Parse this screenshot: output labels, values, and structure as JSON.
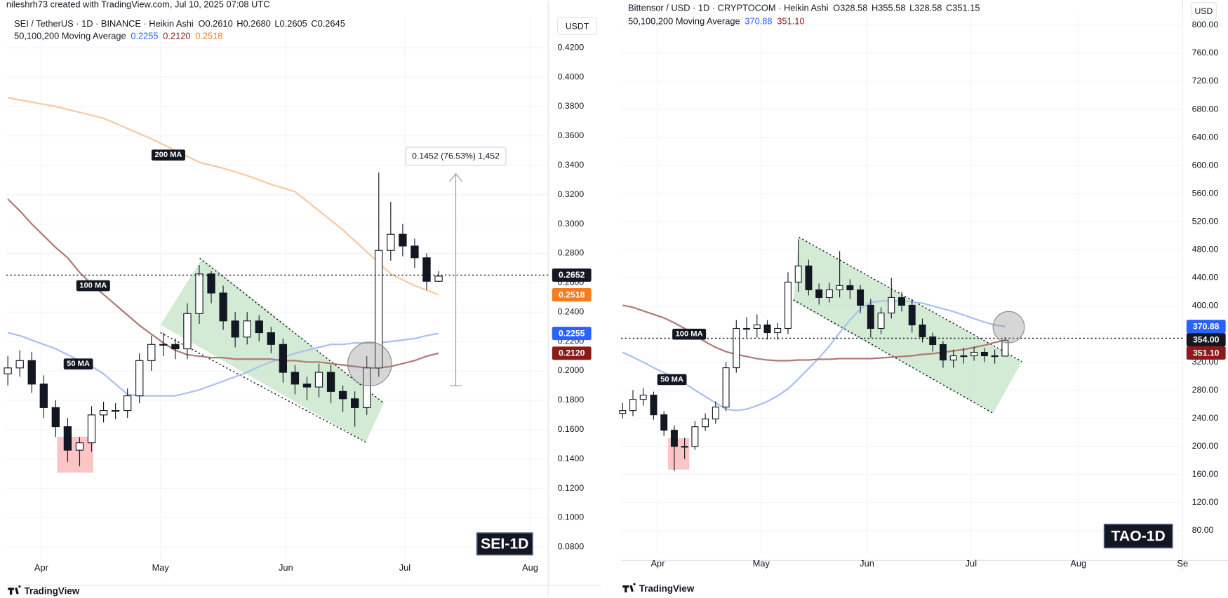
{
  "credit": "nileshrh73 created with TradingView.com, Jul 10, 2025 07:08 UTC",
  "chart_data": [
    {
      "type": "candlestick",
      "title": "SEI / TetherUS · 1D · BINANCE · Heikin Ashi",
      "ohlc_legend": [
        "O0.2610",
        "H0.2680",
        "L0.2605",
        "C0.2645"
      ],
      "ma_title": "50,100,200 Moving Average",
      "currency": "USDT",
      "watermark": "SEI-1D",
      "brand": "TradingView",
      "measure_label": "0.1452 (76.53%) 1,452",
      "up_color": "#ffffff",
      "down_color": "#131722",
      "grid": true,
      "candles": {
        "open": [
          0.198,
          0.202,
          0.207,
          0.191,
          0.175,
          0.162,
          0.146,
          0.151,
          0.17,
          0.173,
          0.173,
          0.183,
          0.207,
          0.218,
          0.218,
          0.215,
          0.239,
          0.266,
          0.253,
          0.234,
          0.223,
          0.234,
          0.226,
          0.218,
          0.199,
          0.191,
          0.189,
          0.199,
          0.186,
          0.181,
          0.175,
          0.202,
          0.282,
          0.293,
          0.285,
          0.277,
          0.261
        ],
        "high": [
          0.21,
          0.214,
          0.213,
          0.197,
          0.18,
          0.168,
          0.155,
          0.176,
          0.179,
          0.178,
          0.188,
          0.212,
          0.224,
          0.226,
          0.222,
          0.246,
          0.272,
          0.268,
          0.258,
          0.24,
          0.24,
          0.238,
          0.23,
          0.222,
          0.204,
          0.196,
          0.205,
          0.204,
          0.19,
          0.186,
          0.21,
          0.335,
          0.315,
          0.3,
          0.29,
          0.28,
          0.268
        ],
        "low": [
          0.19,
          0.196,
          0.185,
          0.168,
          0.155,
          0.138,
          0.135,
          0.145,
          0.165,
          0.167,
          0.168,
          0.178,
          0.2,
          0.21,
          0.208,
          0.208,
          0.232,
          0.246,
          0.228,
          0.216,
          0.218,
          0.22,
          0.212,
          0.192,
          0.184,
          0.18,
          0.182,
          0.178,
          0.172,
          0.162,
          0.17,
          0.196,
          0.275,
          0.278,
          0.27,
          0.255,
          0.2605
        ],
        "close": [
          0.202,
          0.207,
          0.191,
          0.175,
          0.162,
          0.146,
          0.151,
          0.17,
          0.173,
          0.173,
          0.183,
          0.207,
          0.218,
          0.218,
          0.215,
          0.239,
          0.266,
          0.253,
          0.234,
          0.223,
          0.234,
          0.226,
          0.218,
          0.199,
          0.191,
          0.189,
          0.199,
          0.186,
          0.181,
          0.175,
          0.202,
          0.282,
          0.293,
          0.285,
          0.277,
          0.261,
          0.2645
        ]
      },
      "series": [
        {
          "name": "50 MA",
          "color": "#a9c0f2",
          "label_color": "#2962ff",
          "last_label": "0.2255",
          "values": [
            0.226,
            0.224,
            0.221,
            0.218,
            0.215,
            0.211,
            0.207,
            0.203,
            0.198,
            0.191,
            0.184,
            0.183,
            0.183,
            0.183,
            0.183,
            0.185,
            0.187,
            0.19,
            0.193,
            0.196,
            0.199,
            0.203,
            0.206,
            0.209,
            0.212,
            0.214,
            0.216,
            0.218,
            0.218,
            0.219,
            0.219,
            0.219,
            0.22,
            0.221,
            0.222,
            0.224,
            0.2255
          ]
        },
        {
          "name": "100 MA",
          "color": "#b07a76",
          "label_color": "#8b1a1a",
          "last_label": "0.2120",
          "values": [
            0.317,
            0.309,
            0.3,
            0.292,
            0.284,
            0.277,
            0.267,
            0.259,
            0.252,
            0.245,
            0.238,
            0.231,
            0.225,
            0.219,
            0.214,
            0.211,
            0.21,
            0.209,
            0.209,
            0.208,
            0.208,
            0.208,
            0.208,
            0.207,
            0.207,
            0.206,
            0.206,
            0.205,
            0.204,
            0.203,
            0.202,
            0.202,
            0.203,
            0.205,
            0.207,
            0.21,
            0.212
          ]
        },
        {
          "name": "200 MA",
          "color": "#f9c9a0",
          "label_color": "#f57c1f",
          "last_label": "0.2518",
          "values": [
            0.386,
            0.3845,
            0.383,
            0.3815,
            0.38,
            0.378,
            0.376,
            0.374,
            0.372,
            0.3685,
            0.365,
            0.3615,
            0.358,
            0.354,
            0.35,
            0.346,
            0.342,
            0.34,
            0.338,
            0.3355,
            0.333,
            0.33,
            0.327,
            0.3245,
            0.322,
            0.3155,
            0.309,
            0.3025,
            0.296,
            0.2885,
            0.281,
            0.2735,
            0.266,
            0.262,
            0.258,
            0.255,
            0.2518
          ]
        }
      ],
      "last_price": {
        "value": 0.2652,
        "label": "0.2652"
      },
      "xlim": [
        -0.13,
        45.16
      ],
      "xticks": [
        {
          "value": 2.8,
          "label": "Apr"
        },
        {
          "value": 12.76,
          "label": "May"
        },
        {
          "value": 23.23,
          "label": "Jun"
        },
        {
          "value": 33.18,
          "label": "Jul"
        },
        {
          "value": 43.65,
          "label": "Aug"
        }
      ],
      "ylim": [
        0.0582,
        0.4418
      ],
      "yticks": [
        {
          "value": 0.08,
          "label": "0.0800"
        },
        {
          "value": 0.1,
          "label": "0.1000"
        },
        {
          "value": 0.12,
          "label": "0.1200"
        },
        {
          "value": 0.14,
          "label": "0.1400"
        },
        {
          "value": 0.16,
          "label": "0.1600"
        },
        {
          "value": 0.18,
          "label": "0.1800"
        },
        {
          "value": 0.2,
          "label": "0.2000"
        },
        {
          "value": 0.22,
          "label": "0.2200"
        },
        {
          "value": 0.24,
          "label": "0.2400"
        },
        {
          "value": 0.26,
          "label": "0.2600"
        },
        {
          "value": 0.28,
          "label": "0.2800"
        },
        {
          "value": 0.3,
          "label": "0.3000"
        },
        {
          "value": 0.32,
          "label": "0.3200"
        },
        {
          "value": 0.34,
          "label": "0.3400"
        },
        {
          "value": 0.36,
          "label": "0.3600"
        },
        {
          "value": 0.38,
          "label": "0.3800"
        },
        {
          "value": 0.4,
          "label": "0.4000"
        },
        {
          "value": 0.42,
          "label": "0.4200"
        }
      ]
    },
    {
      "type": "candlestick",
      "title": "Bittensor / USD · 1D · CRYPTOCOM · Heikin Ashi",
      "ohlc_legend": [
        "O328.58",
        "H355.58",
        "L328.58",
        "C351.15"
      ],
      "ma_title": "50,100,200 Moving Average",
      "currency": "USD",
      "watermark": "TAO-1D",
      "brand": "TradingView",
      "up_color": "#ffffff",
      "down_color": "#131722",
      "grid": true,
      "candles": {
        "open": [
          247,
          251,
          267,
          273,
          245,
          223,
          200,
          200,
          228,
          239,
          256,
          312,
          368,
          368,
          373,
          362,
          368,
          434,
          457,
          423,
          412,
          423,
          429,
          423,
          401,
          368,
          390,
          412,
          401,
          373,
          356,
          345,
          323,
          329,
          329,
          334,
          329,
          328.58
        ],
        "high": [
          262,
          280,
          283,
          278,
          250,
          230,
          212,
          236,
          247,
          264,
          320,
          380,
          384,
          388,
          380,
          376,
          448,
          495,
          466,
          432,
          433,
          478,
          438,
          430,
          410,
          398,
          440,
          420,
          410,
          382,
          362,
          350,
          338,
          340,
          342,
          340,
          338,
          355.58
        ],
        "low": [
          240,
          243,
          258,
          238,
          215,
          165,
          182,
          195,
          222,
          232,
          250,
          305,
          355,
          355,
          352,
          352,
          360,
          420,
          415,
          402,
          405,
          412,
          410,
          390,
          355,
          360,
          382,
          392,
          362,
          348,
          335,
          312,
          312,
          318,
          322,
          320,
          318,
          328.58
        ],
        "close": [
          251,
          267,
          273,
          245,
          223,
          200,
          200,
          228,
          239,
          256,
          312,
          368,
          368,
          373,
          362,
          368,
          434,
          457,
          423,
          412,
          423,
          429,
          423,
          401,
          368,
          390,
          412,
          401,
          373,
          356,
          345,
          323,
          329,
          329,
          334,
          329,
          328.58,
          351.15
        ]
      },
      "series": [
        {
          "name": "50 MA",
          "color": "#a9c0f2",
          "label_color": "#2962ff",
          "last_label": "370.88",
          "values": [
            334,
            327,
            320,
            312,
            305,
            298,
            290,
            280,
            271,
            262,
            253,
            251,
            253,
            258,
            264,
            272,
            282,
            296,
            311,
            326,
            343,
            362,
            380,
            396,
            405,
            407,
            407,
            407,
            406,
            404,
            400,
            396,
            392,
            387,
            382,
            377,
            373,
            370.88
          ]
        },
        {
          "name": "100 MA",
          "color": "#b07a76",
          "label_color": "#8b1a1a",
          "last_label": "351.10",
          "values": [
            401,
            398,
            393,
            388,
            383,
            376,
            368,
            358,
            349,
            341,
            335,
            331,
            328,
            325,
            323,
            322,
            322,
            323,
            323,
            324,
            324,
            325,
            325,
            325,
            325,
            326,
            327,
            328,
            329,
            331,
            332,
            334,
            336,
            338,
            341,
            344,
            348,
            351.1
          ]
        }
      ],
      "last_price": {
        "value": 354,
        "label": "354.00"
      },
      "xlim": [
        -0.15,
        54.17
      ],
      "xticks": [
        {
          "value": 3.41,
          "label": "Apr"
        },
        {
          "value": 13.41,
          "label": "May"
        },
        {
          "value": 23.64,
          "label": "Jun"
        },
        {
          "value": 33.71,
          "label": "Jul"
        },
        {
          "value": 44.09,
          "label": "Aug"
        },
        {
          "value": 54.17,
          "label": "Se"
        }
      ],
      "ylim": [
        46.6,
        815.6
      ],
      "yticks": [
        {
          "value": 80,
          "label": "80.00"
        },
        {
          "value": 120,
          "label": "120.00"
        },
        {
          "value": 160,
          "label": "160.00"
        },
        {
          "value": 200,
          "label": "200.00"
        },
        {
          "value": 240,
          "label": "240.00"
        },
        {
          "value": 280,
          "label": "280.00"
        },
        {
          "value": 320,
          "label": "320.00"
        },
        {
          "value": 360,
          "label": "360.00"
        },
        {
          "value": 400,
          "label": "400.00"
        },
        {
          "value": 440,
          "label": "440.00"
        },
        {
          "value": 480,
          "label": "480.00"
        },
        {
          "value": 520,
          "label": "520.00"
        },
        {
          "value": 560,
          "label": "560.00"
        },
        {
          "value": 600,
          "label": "600.00"
        },
        {
          "value": 640,
          "label": "640.00"
        },
        {
          "value": 680,
          "label": "680.00"
        },
        {
          "value": 720,
          "label": "720.00"
        },
        {
          "value": 760,
          "label": "760.00"
        },
        {
          "value": 800,
          "label": "800.00"
        }
      ]
    }
  ]
}
